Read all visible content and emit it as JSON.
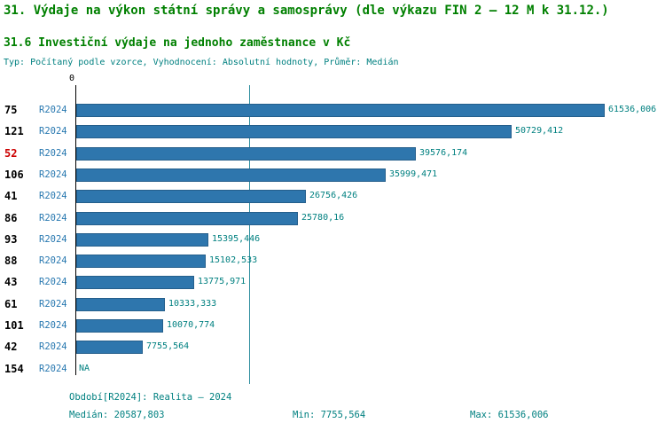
{
  "header": {
    "title": "31. Výdaje na výkon státní správy a samosprávy (dle výkazu FIN 2 – 12 M k 31.12.)",
    "subtitle": "31.6 Investiční výdaje na jednoho zaměstnance v Kč",
    "meta": "Typ: Počítaný podle vzorce, Vyhodnocení: Absolutní hodnoty, Průměr: Medián"
  },
  "chart_data": {
    "type": "bar",
    "orientation": "horizontal",
    "x_axis": {
      "start_label": "0",
      "min": 0,
      "max": 61536.006
    },
    "series_name": "R2024",
    "median": 20587.803,
    "grid": false,
    "rows": [
      {
        "id": "75",
        "period": "R2024",
        "value": 61536.006,
        "value_label": "61536,006",
        "highlight": false
      },
      {
        "id": "121",
        "period": "R2024",
        "value": 50729.412,
        "value_label": "50729,412",
        "highlight": false
      },
      {
        "id": "52",
        "period": "R2024",
        "value": 39576.174,
        "value_label": "39576,174",
        "highlight": true
      },
      {
        "id": "106",
        "period": "R2024",
        "value": 35999.471,
        "value_label": "35999,471",
        "highlight": false
      },
      {
        "id": "41",
        "period": "R2024",
        "value": 26756.426,
        "value_label": "26756,426",
        "highlight": false
      },
      {
        "id": "86",
        "period": "R2024",
        "value": 25780.16,
        "value_label": "25780,16",
        "highlight": false
      },
      {
        "id": "93",
        "period": "R2024",
        "value": 15395.446,
        "value_label": "15395,446",
        "highlight": false
      },
      {
        "id": "88",
        "period": "R2024",
        "value": 15102.533,
        "value_label": "15102,533",
        "highlight": false
      },
      {
        "id": "43",
        "period": "R2024",
        "value": 13775.971,
        "value_label": "13775,971",
        "highlight": false
      },
      {
        "id": "61",
        "period": "R2024",
        "value": 10333.333,
        "value_label": "10333,333",
        "highlight": false
      },
      {
        "id": "101",
        "period": "R2024",
        "value": 10070.774,
        "value_label": "10070,774",
        "highlight": false
      },
      {
        "id": "42",
        "period": "R2024",
        "value": 7755.564,
        "value_label": "7755,564",
        "highlight": false
      },
      {
        "id": "154",
        "period": "R2024",
        "value": null,
        "value_label": "NA",
        "highlight": false
      }
    ]
  },
  "footer": {
    "period": "Období[R2024]: Realita – 2024",
    "median": "Medián: 20587,803",
    "min": "Min: 7755,564",
    "max": "Max: 61536,006"
  },
  "colors": {
    "title_green": "#008000",
    "teal_text": "#008080",
    "bar_blue": "#2e76ad",
    "period_blue": "#2878b0",
    "highlight_red": "#cc0000",
    "median_line": "#2f8fa0"
  }
}
